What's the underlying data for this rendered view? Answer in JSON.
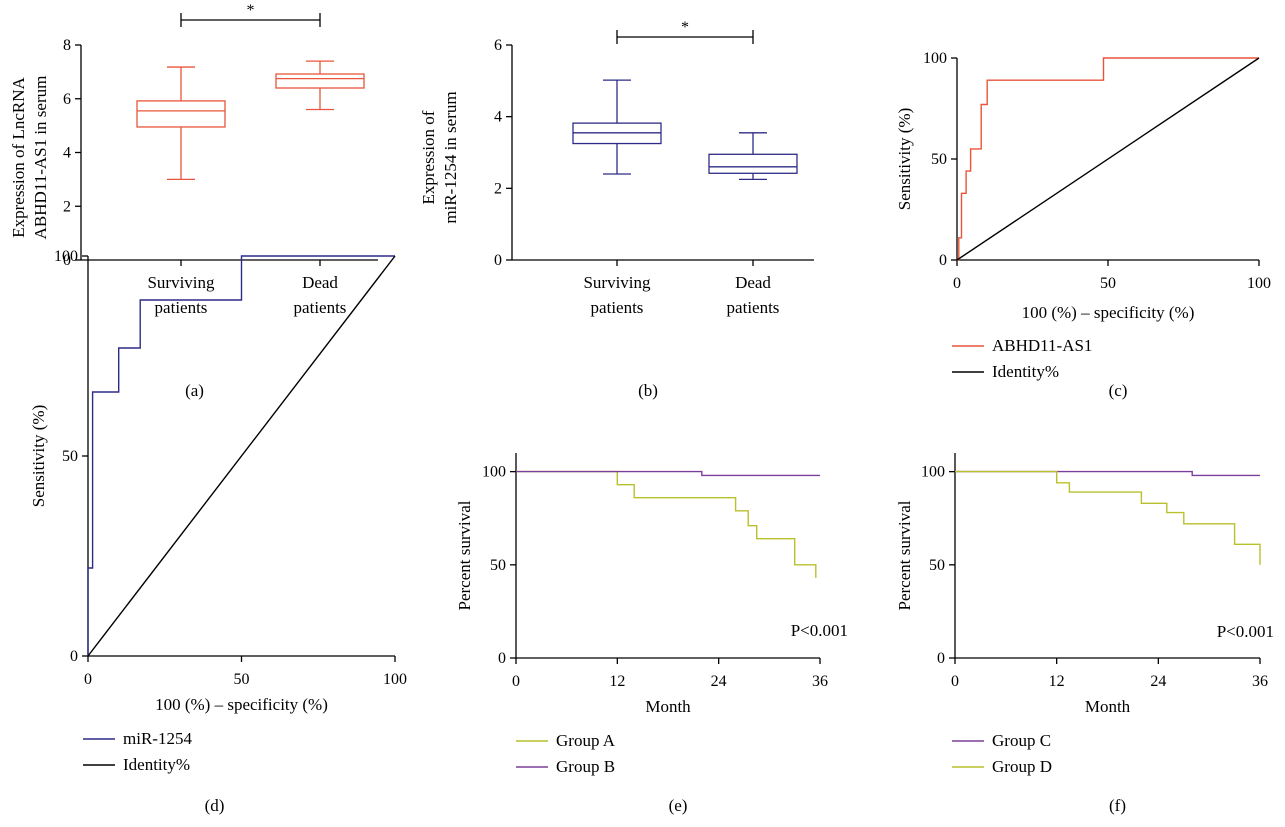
{
  "colors": {
    "red": "#e8553a",
    "navy": "#2e2c86",
    "olive": "#b9c12a",
    "purple": "#7c3e9c",
    "black": "#000000"
  },
  "chart_data": [
    {
      "id": "a",
      "panel_label": "(a)",
      "type": "box",
      "ylabel_lines": [
        "Expression of LncRNA",
        "ABHD11-AS1 in serum"
      ],
      "xlabel": "",
      "ylim": [
        0,
        8
      ],
      "yticks": [
        0,
        2,
        4,
        6,
        8
      ],
      "categories": [
        [
          "Surviving",
          "patients"
        ],
        [
          "Dead",
          "patients"
        ]
      ],
      "boxes": [
        {
          "min": 3.0,
          "q1": 4.95,
          "median": 5.55,
          "q3": 5.92,
          "max": 7.18
        },
        {
          "min": 5.6,
          "q1": 6.4,
          "median": 6.75,
          "q3": 6.92,
          "max": 7.4
        }
      ],
      "significance": "*",
      "color": "red"
    },
    {
      "id": "b",
      "panel_label": "(b)",
      "type": "box",
      "ylabel_lines": [
        "Expression of",
        "miR-1254 in serum"
      ],
      "xlabel": "",
      "ylim": [
        0,
        6
      ],
      "yticks": [
        0,
        2,
        4,
        6
      ],
      "categories": [
        [
          "Surviving",
          "patients"
        ],
        [
          "Dead",
          "patients"
        ]
      ],
      "boxes": [
        {
          "min": 2.4,
          "q1": 3.25,
          "median": 3.55,
          "q3": 3.82,
          "max": 5.02
        },
        {
          "min": 2.25,
          "q1": 2.42,
          "median": 2.6,
          "q3": 2.95,
          "max": 3.55
        }
      ],
      "significance": "*",
      "color": "navy"
    },
    {
      "id": "c",
      "panel_label": "(c)",
      "type": "line",
      "xlabel": "100 (%) – specificity (%)",
      "ylabel": "Sensitivity (%)",
      "xlim": [
        0,
        100
      ],
      "ylim": [
        0,
        100
      ],
      "xticks": [
        0,
        50,
        100
      ],
      "yticks": [
        0,
        50,
        100
      ],
      "series": [
        {
          "name": "ABHD11-AS1",
          "color": "red",
          "step": true,
          "x": [
            0,
            0.6,
            0.6,
            1.5,
            1.5,
            3,
            3,
            4.5,
            4.5,
            6,
            6,
            8,
            8,
            9,
            9,
            10,
            10,
            48.5,
            48.5,
            100
          ],
          "y": [
            0,
            0,
            11,
            11,
            33,
            33,
            44,
            44,
            55,
            55,
            55,
            55,
            77,
            77,
            77,
            77,
            89,
            89,
            100,
            100
          ]
        },
        {
          "name": "Identity%",
          "color": "black",
          "step": false,
          "x": [
            0,
            100
          ],
          "y": [
            0,
            100
          ]
        }
      ]
    },
    {
      "id": "d",
      "panel_label": "(d)",
      "type": "line",
      "xlabel": "100 (%) – specificity (%)",
      "ylabel": "Sensitivity (%)",
      "xlim": [
        0,
        100
      ],
      "ylim": [
        0,
        100
      ],
      "xticks": [
        0,
        50,
        100
      ],
      "yticks": [
        0,
        50,
        100
      ],
      "series": [
        {
          "name": "miR-1254",
          "color": "navy",
          "step": true,
          "x": [
            0,
            0,
            1.5,
            1.5,
            10,
            10,
            17,
            17,
            50,
            50,
            100
          ],
          "y": [
            0,
            22,
            22,
            66,
            66,
            77,
            77,
            89,
            89,
            100,
            100
          ]
        },
        {
          "name": "Identity%",
          "color": "black",
          "step": false,
          "x": [
            0,
            100
          ],
          "y": [
            0,
            100
          ]
        }
      ]
    },
    {
      "id": "e",
      "panel_label": "(e)",
      "type": "line",
      "xlabel": "Month",
      "ylabel": "Percent survival",
      "xlim": [
        0,
        36
      ],
      "ylim": [
        0,
        110
      ],
      "xticks": [
        0,
        12,
        24,
        36
      ],
      "yticks": [
        0,
        50,
        100
      ],
      "annotation": "P<0.001",
      "series": [
        {
          "name": "Group A",
          "color": "olive",
          "step": true,
          "x": [
            0,
            12,
            12,
            14,
            14,
            26,
            26,
            27.5,
            27.5,
            28.5,
            28.5,
            33,
            33,
            35.5,
            35.5
          ],
          "y": [
            100,
            100,
            93,
            93,
            86,
            86,
            79,
            79,
            71,
            71,
            64,
            64,
            50,
            50,
            43
          ]
        },
        {
          "name": "Group B",
          "color": "purple",
          "step": true,
          "x": [
            0,
            22,
            22,
            36
          ],
          "y": [
            100,
            100,
            98,
            98
          ]
        }
      ]
    },
    {
      "id": "f",
      "panel_label": "(f)",
      "type": "line",
      "xlabel": "Month",
      "ylabel": "Percent survival",
      "xlim": [
        0,
        36
      ],
      "ylim": [
        0,
        110
      ],
      "xticks": [
        0,
        12,
        24,
        36
      ],
      "yticks": [
        0,
        50,
        100
      ],
      "annotation": "P<0.001",
      "series": [
        {
          "name": "Group C",
          "color": "purple",
          "step": true,
          "x": [
            0,
            28,
            28,
            36
          ],
          "y": [
            100,
            100,
            98,
            98
          ]
        },
        {
          "name": "Group D",
          "color": "olive",
          "step": true,
          "x": [
            0,
            12,
            12,
            13.5,
            13.5,
            22,
            22,
            25,
            25,
            27,
            27,
            33,
            33,
            36,
            36
          ],
          "y": [
            100,
            100,
            94,
            94,
            89,
            89,
            83,
            83,
            78,
            78,
            72,
            72,
            61,
            61,
            50
          ]
        }
      ]
    }
  ]
}
